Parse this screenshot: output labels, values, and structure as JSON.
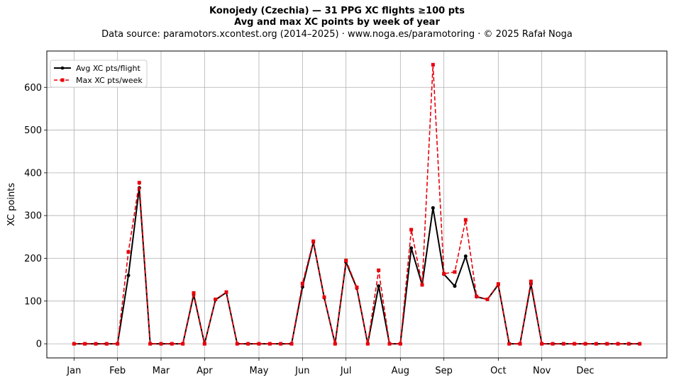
{
  "title": {
    "line1": "Konojedy (Czechia)  —  31 PPG XC flights ≥100 pts",
    "line2": "Avg and max XC points by week of year",
    "line3": "Data source: paramotors.xcontest.org (2014–2025)  ·  www.noga.es/paramotoring  ·  © 2025 Rafał Noga"
  },
  "chart_data": {
    "type": "line",
    "title": "Konojedy (Czechia)  —  31 PPG XC flights ≥100 pts",
    "subtitle": "Avg and max XC points by week of year",
    "xlabel": "",
    "ylabel": "XC points",
    "xlim": [
      -2.5,
      54.5
    ],
    "ylim": [
      -33,
      685
    ],
    "yticks": [
      0,
      100,
      200,
      300,
      400,
      500,
      600
    ],
    "xticks": [
      {
        "label": "Jan",
        "week": 0
      },
      {
        "label": "Feb",
        "week": 4
      },
      {
        "label": "Mar",
        "week": 8
      },
      {
        "label": "Apr",
        "week": 12
      },
      {
        "label": "May",
        "week": 17
      },
      {
        "label": "Jun",
        "week": 21
      },
      {
        "label": "Jul",
        "week": 25
      },
      {
        "label": "Aug",
        "week": 30
      },
      {
        "label": "Sep",
        "week": 34
      },
      {
        "label": "Oct",
        "week": 39
      },
      {
        "label": "Nov",
        "week": 43
      },
      {
        "label": "Dec",
        "week": 47
      }
    ],
    "grid": true,
    "legend_position": "top-left",
    "x": [
      0,
      1,
      2,
      3,
      4,
      5,
      6,
      7,
      8,
      9,
      10,
      11,
      12,
      13,
      14,
      15,
      16,
      17,
      18,
      19,
      20,
      21,
      22,
      23,
      24,
      25,
      26,
      27,
      28,
      29,
      30,
      31,
      32,
      33,
      34,
      35,
      36,
      37,
      38,
      39,
      40,
      41,
      42,
      43,
      44,
      45,
      46,
      47,
      48,
      49,
      50,
      51,
      52
    ],
    "series": [
      {
        "name": "Avg XC pts/flight",
        "color": "#000000",
        "style": "solid",
        "marker": "circle",
        "values": [
          0,
          0,
          0,
          0,
          0,
          160,
          365,
          0,
          0,
          0,
          0,
          115,
          0,
          103,
          120,
          0,
          0,
          0,
          0,
          0,
          0,
          133,
          238,
          108,
          0,
          191,
          130,
          0,
          135,
          0,
          0,
          224,
          138,
          318,
          163,
          135,
          205,
          110,
          104,
          138,
          0,
          0,
          140,
          0,
          0,
          0,
          0,
          0,
          0,
          0,
          0,
          0,
          0
        ]
      },
      {
        "name": "Max XC pts/week",
        "color": "#e8000b",
        "style": "dashed",
        "marker": "square",
        "values": [
          0,
          0,
          0,
          0,
          0,
          215,
          377,
          0,
          0,
          0,
          0,
          119,
          0,
          104,
          121,
          0,
          0,
          0,
          0,
          0,
          0,
          141,
          240,
          109,
          0,
          195,
          132,
          0,
          172,
          0,
          0,
          267,
          138,
          653,
          164,
          168,
          290,
          111,
          104,
          140,
          0,
          0,
          146,
          0,
          0,
          0,
          0,
          0,
          0,
          0,
          0,
          0,
          0
        ]
      }
    ]
  }
}
